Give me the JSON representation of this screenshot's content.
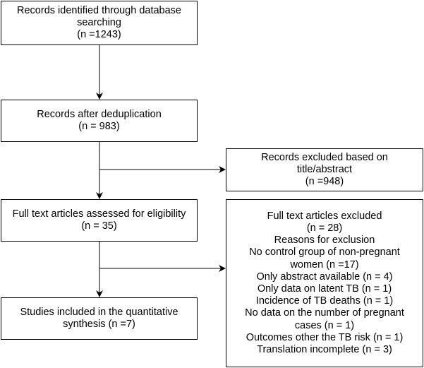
{
  "boxes": {
    "identified": {
      "lines": [
        "Records identified through database",
        "searching",
        "(n =1243)"
      ]
    },
    "dedup": {
      "lines": [
        "Records after deduplication",
        "(n = 983)"
      ]
    },
    "excluded_title": {
      "lines": [
        "Records excluded based on",
        "title/abstract",
        "(n =948)"
      ]
    },
    "fulltext": {
      "lines": [
        "Full text articles assessed for eligibility",
        "(n = 35)"
      ]
    },
    "fulltext_excluded": {
      "lines": [
        "Full text articles excluded",
        "(n = 28)",
        "Reasons for exclusion",
        "No control group of non-pregnant",
        "women (n =17)",
        "Only abstract available (n = 4)",
        "Only data on latent TB (n = 1)",
        "Incidence of TB deaths (n = 1)",
        "No data on the number of pregnant",
        "cases (n = 1)",
        "Outcomes other the TB risk (n = 1)",
        "Translation incomplete (n = 3)"
      ]
    },
    "included": {
      "lines": [
        "Studies included in the quantitative",
        "synthesis (n =7)"
      ]
    }
  }
}
